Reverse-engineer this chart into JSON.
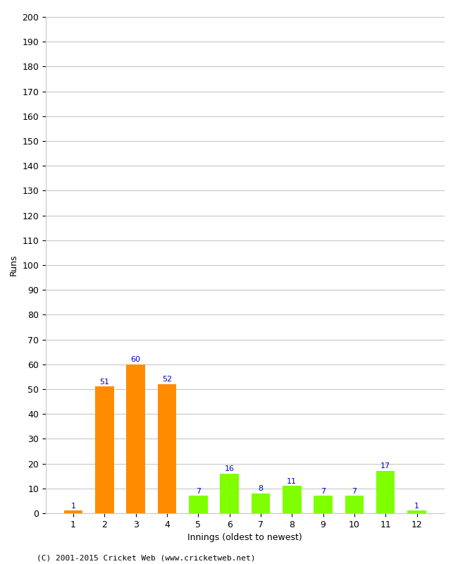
{
  "innings": [
    1,
    2,
    3,
    4,
    5,
    6,
    7,
    8,
    9,
    10,
    11,
    12
  ],
  "runs": [
    1,
    51,
    60,
    52,
    7,
    16,
    8,
    11,
    7,
    7,
    17,
    1
  ],
  "bar_colors": [
    "#ff8c00",
    "#ff8c00",
    "#ff8c00",
    "#ff8c00",
    "#7fff00",
    "#7fff00",
    "#7fff00",
    "#7fff00",
    "#7fff00",
    "#7fff00",
    "#7fff00",
    "#7fff00"
  ],
  "xlabel": "Innings (oldest to newest)",
  "ylabel": "Runs",
  "ylim": [
    0,
    200
  ],
  "yticks": [
    0,
    10,
    20,
    30,
    40,
    50,
    60,
    70,
    80,
    90,
    100,
    110,
    120,
    130,
    140,
    150,
    160,
    170,
    180,
    190,
    200
  ],
  "title": "",
  "footer": "(C) 2001-2015 Cricket Web (www.cricketweb.net)",
  "label_color": "#0000cc",
  "background_color": "#ffffff",
  "grid_color": "#c8c8c8",
  "bar_width": 0.6,
  "tick_fontsize": 9,
  "label_fontsize": 8,
  "axis_label_fontsize": 9,
  "footer_fontsize": 8
}
